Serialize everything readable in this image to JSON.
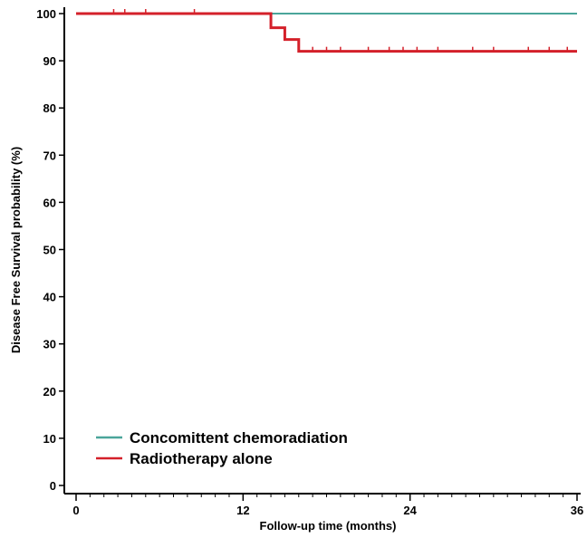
{
  "chart_data": {
    "type": "line",
    "title": "",
    "xlabel": "Follow-up time (months)",
    "ylabel": "Disease Free Survival probability (%)",
    "xlim": [
      0,
      36
    ],
    "ylim": [
      0,
      100
    ],
    "xticks": [
      0,
      12,
      24,
      36
    ],
    "yticks": [
      0,
      10,
      20,
      30,
      40,
      50,
      60,
      70,
      80,
      90,
      100
    ],
    "grid": false,
    "legend_position": "bottom-left",
    "series": [
      {
        "name": "Concomittent chemoradiation",
        "color": "#4aa59a",
        "step": true,
        "x": [
          0,
          36
        ],
        "y": [
          100,
          100
        ],
        "censor_x": []
      },
      {
        "name": "Radiotherapy alone",
        "color": "#d4202a",
        "step": true,
        "x": [
          0,
          14,
          15,
          16,
          36
        ],
        "y": [
          100,
          97,
          94.5,
          92,
          92
        ],
        "censor_x": [
          2.7,
          3.5,
          5.0,
          8.5,
          17,
          18,
          19,
          21,
          22.5,
          23.5,
          24.5,
          26,
          28.5,
          30,
          32.5,
          34,
          35.3
        ]
      }
    ]
  }
}
